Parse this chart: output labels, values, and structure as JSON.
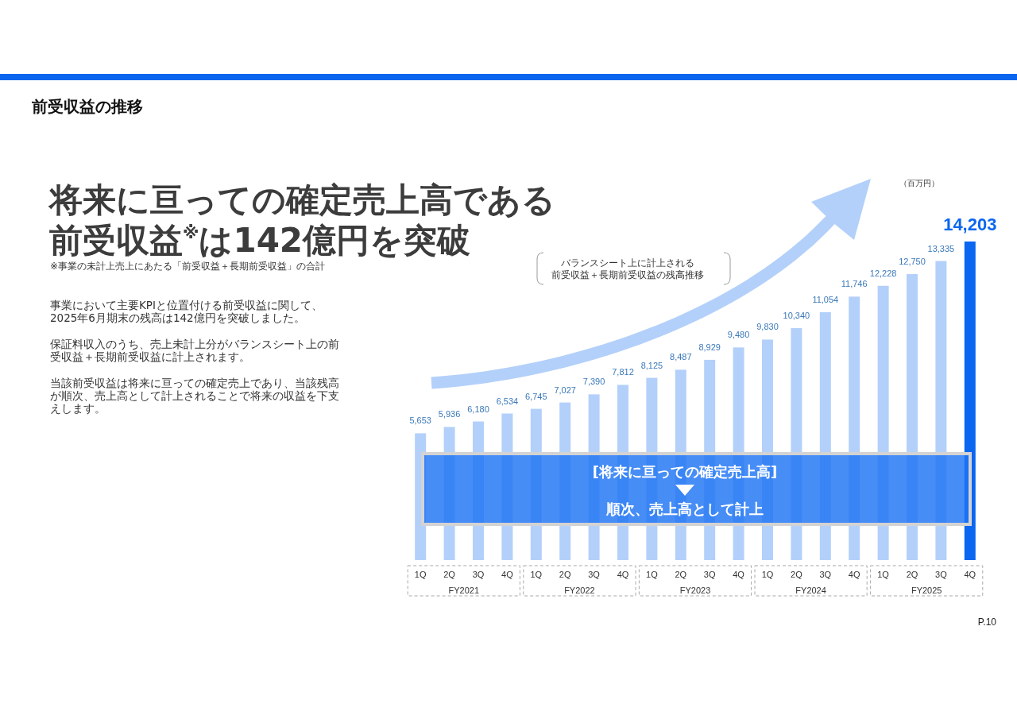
{
  "chart_data": {
    "type": "bar",
    "title": "前受収益の推移",
    "subtitle": "将来に亘っての確定売上高である前受収益$^{※}$は142億円を突破",
    "categories": [
      "1Q",
      "2Q",
      "3Q",
      "4Q",
      "1Q",
      "2Q",
      "3Q",
      "4Q",
      "1Q",
      "2Q",
      "3Q",
      "4Q",
      "1Q",
      "2Q",
      "3Q",
      "4Q",
      "1Q",
      "2Q",
      "3Q",
      "4Q"
    ],
    "values": [
      5653,
      5936,
      6180,
      6534,
      6745,
      7027,
      7390,
      7812,
      8125,
      8487,
      8929,
      9480,
      9830,
      10340,
      11054,
      11746,
      12228,
      12750,
      13335,
      14203
    ],
    "value_labels": [
      "5,653",
      "5,936",
      "6,180",
      "6,534",
      "6,745",
      "7,027",
      "7,390",
      "7,812",
      "8,125",
      "8,487",
      "8,929",
      "9,480",
      "9,830",
      "10,340",
      "11,054",
      "11,746",
      "12,228",
      "12,750",
      "13,335",
      "14,203"
    ],
    "colors": [
      "#b3d0fa",
      "#b3d0fa",
      "#b3d0fa",
      "#b3d0fa",
      "#b3d0fa",
      "#b3d0fa",
      "#b3d0fa",
      "#b3d0fa",
      "#b3d0fa",
      "#b3d0fa",
      "#b3d0fa",
      "#b3d0fa",
      "#b3d0fa",
      "#b3d0fa",
      "#b3d0fa",
      "#b3d0fa",
      "#b3d0fa",
      "#b3d0fa",
      "#b3d0fa",
      "#0b66f0"
    ],
    "tick_labels": "x",
    "annotations": [
      "バランスシート上に計上される",
      "前受収益＋長期前受収益の残高推移",
      "[将来に亘っての確定売上高]",
      "順次、売上高として計上",
      "FY2021",
      "FY2022",
      "FY2023",
      "FY2024",
      "FY2025",
      "※事業の未計上売上にあたる「前受収益＋長期前受収益」の合計",
      "事業において主要KPIと位置付ける前受収益に関して、2025年6月期末の残高は142億円を突破しました。",
      "保証料収入のうち、売上未計上分がバランスシート上の前受収益＋長期前受収益に計上されます。",
      "当該前受収益は将来に亘っての確定売上であり、当該残高が順次、売上高として計上されることで将来の収益を下支えします。",
      "P.10",
      "（百万円）"
    ]
  }
}
